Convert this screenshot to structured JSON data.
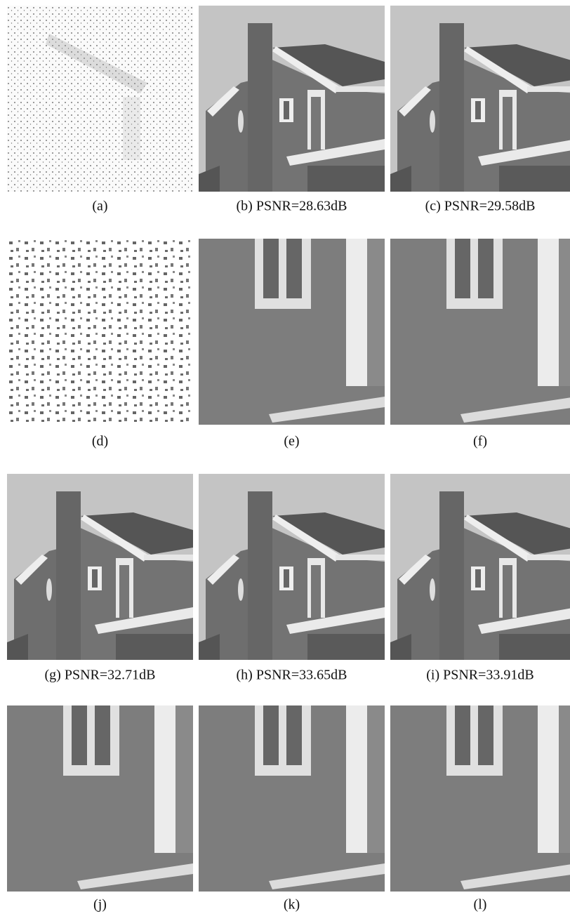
{
  "figure": {
    "panels": [
      {
        "caption": "(a)"
      },
      {
        "caption": "(b) PSNR=28.63dB"
      },
      {
        "caption": "(c) PSNR=29.58dB"
      },
      {
        "caption": "(d)"
      },
      {
        "caption": "(e)"
      },
      {
        "caption": "(f)"
      },
      {
        "caption": "(g) PSNR=32.71dB"
      },
      {
        "caption": "(h) PSNR=33.65dB"
      },
      {
        "caption": "(i) PSNR=33.91dB"
      },
      {
        "caption": "(j)"
      },
      {
        "caption": "(k)"
      },
      {
        "caption": "(l)"
      }
    ]
  }
}
